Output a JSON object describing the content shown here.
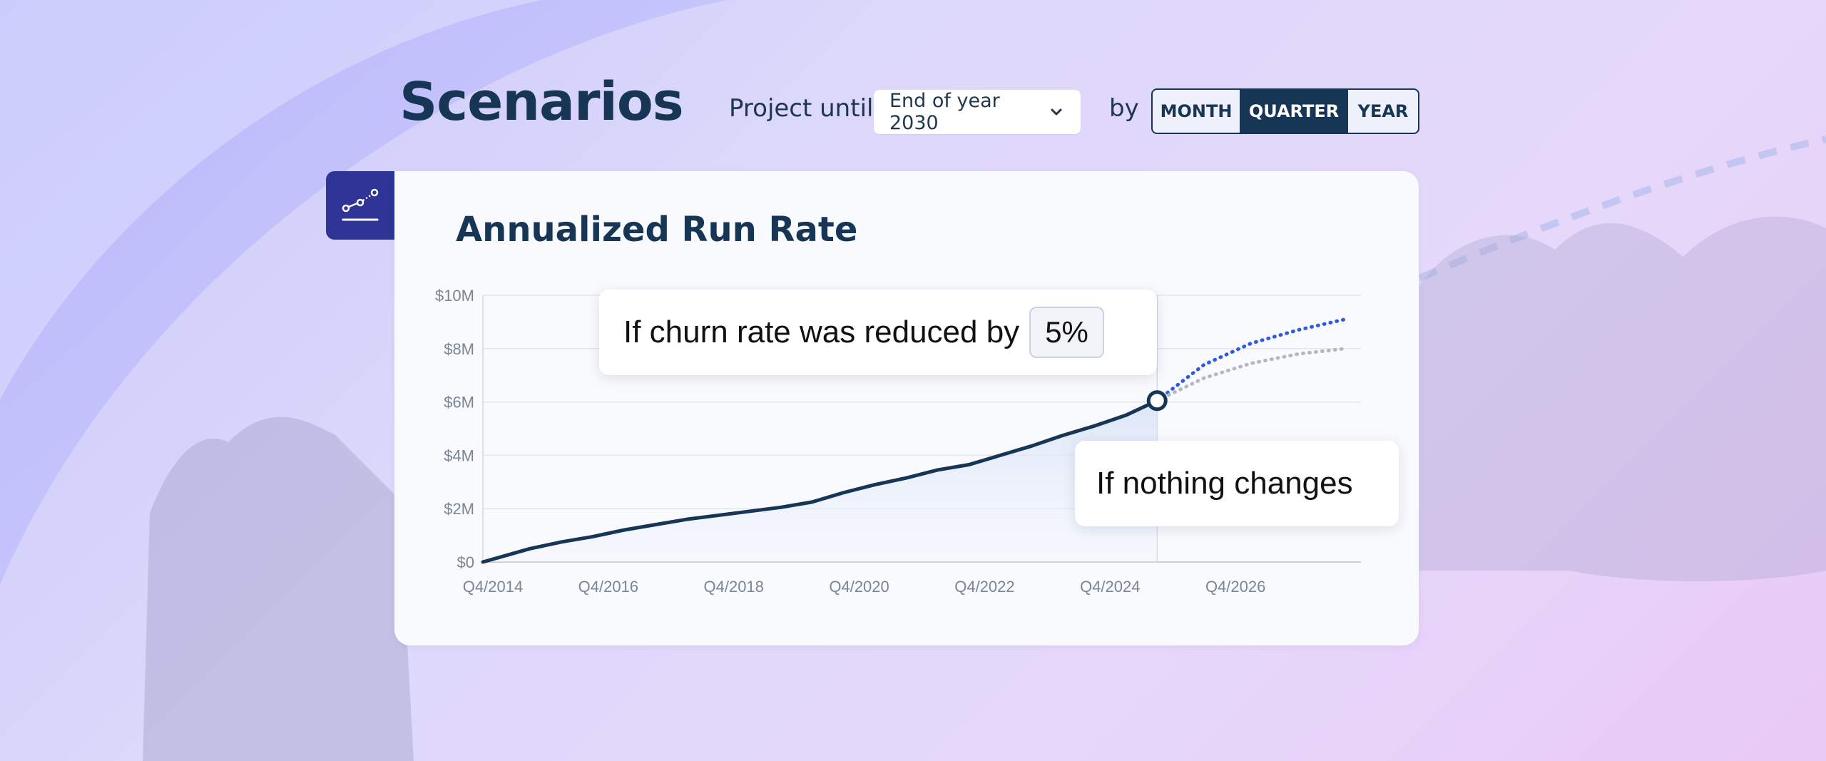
{
  "page": {
    "title": "Scenarios",
    "project_until_label": "Project until",
    "project_until_value": "End of year 2030",
    "by_label": "by",
    "granularity_options": [
      "MONTH",
      "QUARTER",
      "YEAR"
    ],
    "granularity_selected": "QUARTER"
  },
  "card": {
    "title": "Annualized Run Rate",
    "icon": "line-chart-icon",
    "callouts": {
      "churn_text": "If churn rate was reduced by",
      "churn_value": "5%",
      "nothing_text": "If nothing changes"
    }
  },
  "colors": {
    "navy": "#173655",
    "accent_blue": "#2f5be0",
    "grey_projection": "#b4b8c4",
    "icon_tab": "#2f3596"
  },
  "chart_data": {
    "type": "line",
    "title": "Annualized Run Rate",
    "y_tick_labels": [
      "$0",
      "$2M",
      "$4M",
      "$6M",
      "$8M",
      "$10M"
    ],
    "x_tick_labels": [
      "Q4/2014",
      "Q4/2016",
      "Q4/2018",
      "Q4/2020",
      "Q4/2022",
      "Q4/2024",
      "Q4/2026"
    ],
    "ylim": [
      0,
      10
    ],
    "y_unit": "$M",
    "grid": true,
    "series": [
      {
        "style": "solid",
        "x": [
          2014.75,
          2015.5,
          2016.0,
          2016.5,
          2017.0,
          2017.5,
          2018.0,
          2018.5,
          2019.0,
          2019.5,
          2020.0,
          2020.5,
          2021.0,
          2021.5,
          2022.0,
          2022.5,
          2023.0,
          2023.5,
          2024.0,
          2024.5,
          2025.0,
          2025.5
        ],
        "values": [
          0.0,
          0.5,
          0.75,
          0.95,
          1.2,
          1.4,
          1.6,
          1.75,
          1.9,
          2.05,
          2.25,
          2.6,
          2.9,
          3.15,
          3.45,
          3.65,
          4.0,
          4.35,
          4.75,
          5.1,
          5.5,
          6.05
        ]
      },
      {
        "style": "dotted",
        "x": [
          2025.5,
          2026.25,
          2027.0,
          2027.75,
          2028.5
        ],
        "values": [
          6.05,
          7.4,
          8.2,
          8.7,
          9.1
        ]
      },
      {
        "style": "dotted",
        "x": [
          2025.5,
          2026.25,
          2027.0,
          2027.75,
          2028.5
        ],
        "values": [
          6.05,
          6.9,
          7.45,
          7.8,
          8.0
        ]
      }
    ]
  }
}
